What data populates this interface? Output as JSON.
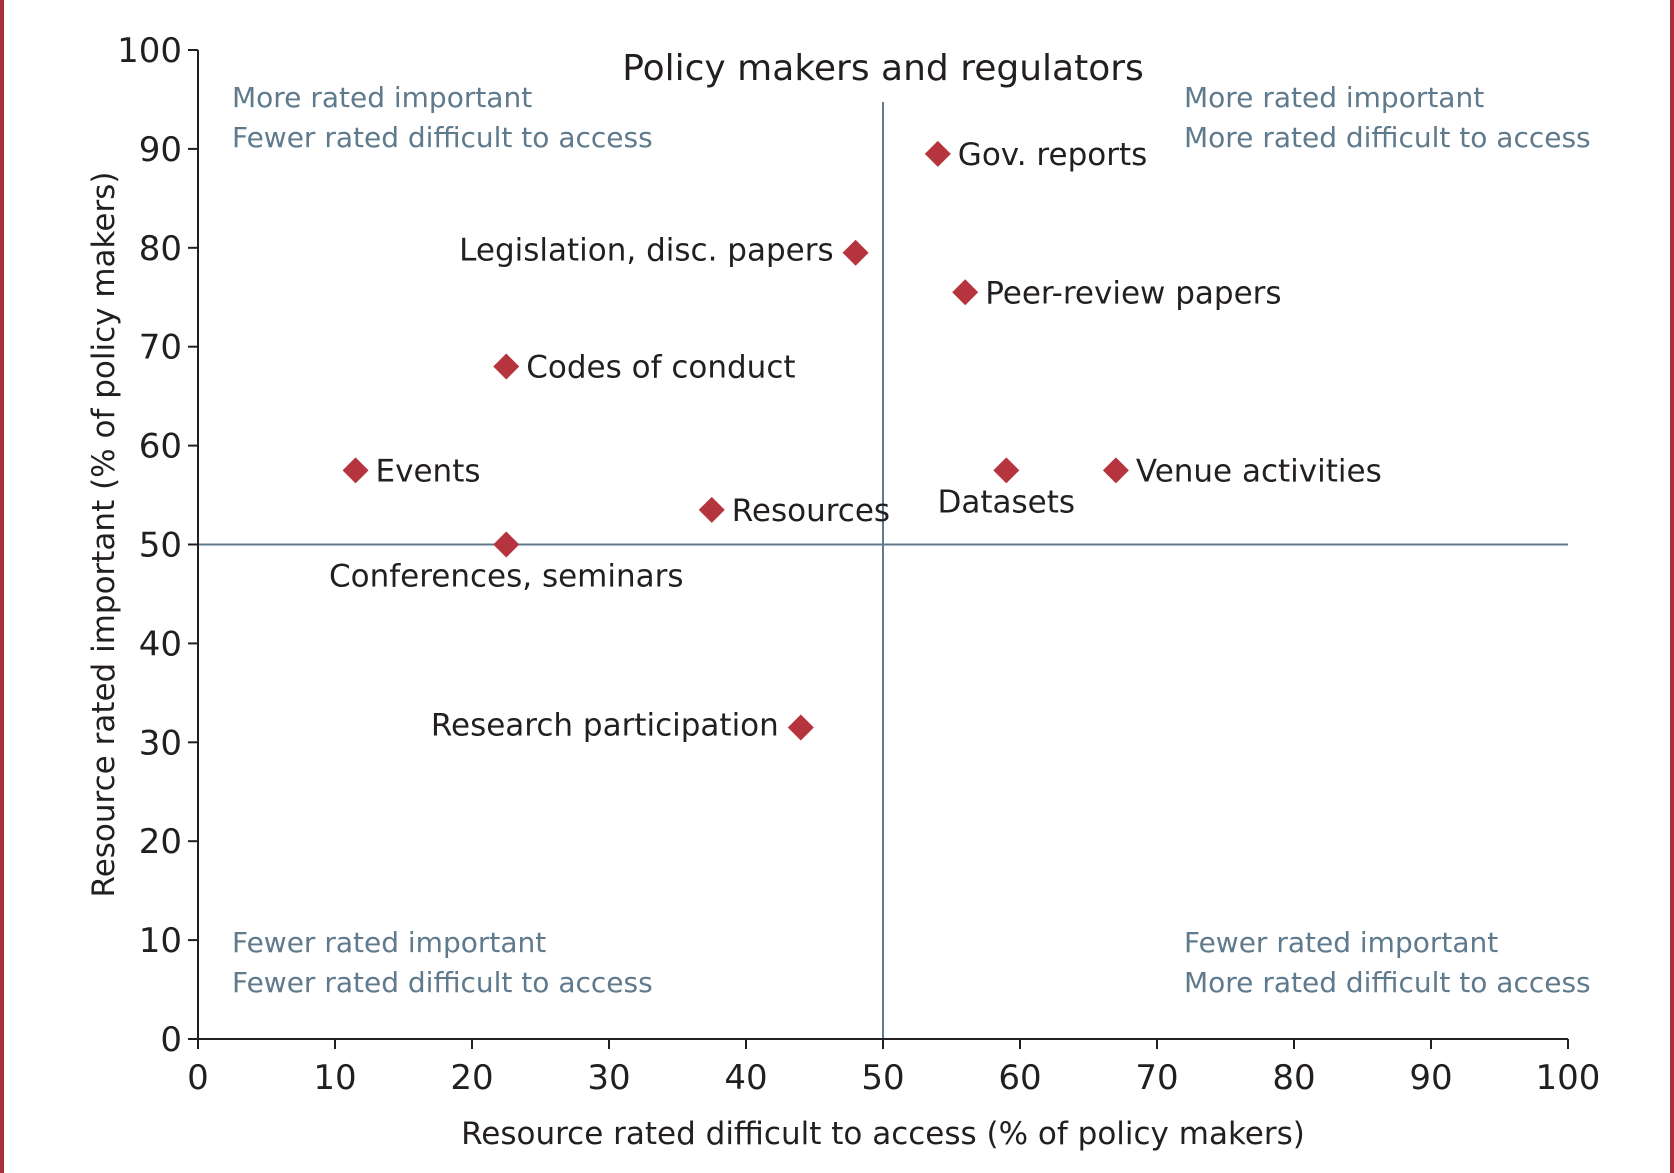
{
  "chart_data": {
    "type": "scatter",
    "title": "Policy makers and regulators",
    "xlabel": "Resource rated difficult to access (% of policy makers)",
    "ylabel": "Resource rated important (% of policy makers)",
    "xlim": [
      0,
      100
    ],
    "ylim": [
      0,
      100
    ],
    "xticks": [
      0,
      10,
      20,
      30,
      40,
      50,
      60,
      70,
      80,
      90,
      100
    ],
    "yticks": [
      0,
      10,
      20,
      30,
      40,
      50,
      60,
      70,
      80,
      90,
      100
    ],
    "reference_lines": {
      "x": 50,
      "y": 50
    },
    "marker_color": "#b5343d",
    "reference_line_color": "#5f7a8c",
    "points": [
      {
        "label": "Gov. reports",
        "x": 54,
        "y": 89.5,
        "label_pos": "right"
      },
      {
        "label": "Legislation, disc. papers",
        "x": 48,
        "y": 79.5,
        "label_pos": "left"
      },
      {
        "label": "Peer-review papers",
        "x": 56,
        "y": 75.5,
        "label_pos": "right"
      },
      {
        "label": "Codes of conduct",
        "x": 22.5,
        "y": 68,
        "label_pos": "right"
      },
      {
        "label": "Events",
        "x": 11.5,
        "y": 57.5,
        "label_pos": "right"
      },
      {
        "label": "Datasets",
        "x": 59,
        "y": 57.5,
        "label_pos": "below"
      },
      {
        "label": "Venue activities",
        "x": 67,
        "y": 57.5,
        "label_pos": "right"
      },
      {
        "label": "Resources",
        "x": 37.5,
        "y": 53.5,
        "label_pos": "right"
      },
      {
        "label": "Conferences, seminars",
        "x": 22.5,
        "y": 50,
        "label_pos": "below"
      },
      {
        "label": "Research participation",
        "x": 44,
        "y": 31.5,
        "label_pos": "left"
      }
    ],
    "quadrant_labels": {
      "top_left": [
        "More rated important",
        "Fewer rated difficult to access"
      ],
      "top_right": [
        "More rated important",
        "More rated difficult to access"
      ],
      "bottom_left": [
        "Fewer rated important",
        "Fewer rated difficult to access"
      ],
      "bottom_right": [
        "Fewer rated important",
        "More rated difficult to access"
      ]
    }
  }
}
